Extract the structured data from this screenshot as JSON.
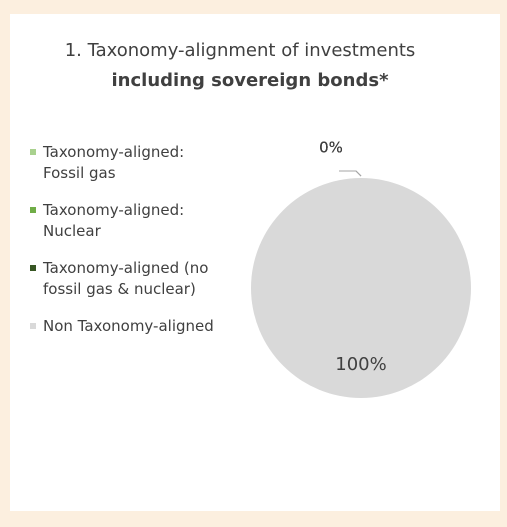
{
  "chart_data": {
    "type": "pie",
    "title": "1. Taxonomy-alignment of investments",
    "subtitle": "including sovereign bonds*",
    "categories": [
      "Taxonomy-aligned: Fossil gas",
      "Taxonomy-aligned: Nuclear",
      "Taxonomy-aligned (no fossil gas & nuclear)",
      "Non Taxonomy-aligned"
    ],
    "values": [
      0,
      0,
      0,
      100
    ],
    "value_labels": [
      "0%",
      "0%",
      "0%",
      "100%"
    ],
    "colors": [
      "#a9d18e",
      "#70ad47",
      "#375623",
      "#d9d9d9"
    ],
    "legend": "left"
  }
}
